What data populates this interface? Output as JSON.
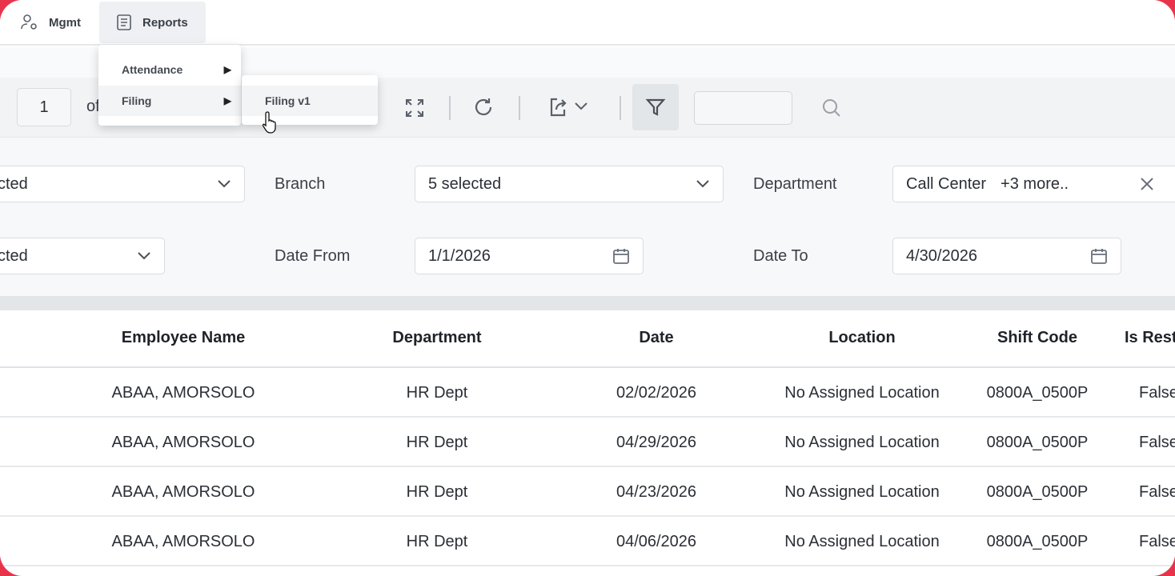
{
  "nav": {
    "items": [
      {
        "label": "Mgmt",
        "icon": "user-gear-icon"
      },
      {
        "label": "Reports",
        "icon": "document-icon",
        "active": true
      }
    ]
  },
  "menu": {
    "items": [
      {
        "label": "Attendance"
      },
      {
        "label": "Filing"
      }
    ],
    "submenu": [
      {
        "label": "Filing v1"
      }
    ]
  },
  "toolbar": {
    "page": "1",
    "of_label": "of",
    "search_value": ""
  },
  "filters": {
    "first_select": "cted",
    "branch_label": "Branch",
    "branch_value": "5 selected",
    "department_label": "Department",
    "department_value": "Call Center",
    "department_more": "+3 more..",
    "second_select": "cted",
    "date_from_label": "Date From",
    "date_from_value": "1/1/2026",
    "date_to_label": "Date To",
    "date_to_value": "4/30/2026"
  },
  "table": {
    "columns": [
      "Employee Name",
      "Department",
      "Date",
      "Location",
      "Shift Code",
      "Is Rest"
    ],
    "rows": [
      [
        "ABAA, AMORSOLO",
        "HR Dept",
        "02/02/2026",
        "No Assigned Location",
        "0800A_0500P",
        "False"
      ],
      [
        "ABAA, AMORSOLO",
        "HR Dept",
        "04/29/2026",
        "No Assigned Location",
        "0800A_0500P",
        "False"
      ],
      [
        "ABAA, AMORSOLO",
        "HR Dept",
        "04/23/2026",
        "No Assigned Location",
        "0800A_0500P",
        "False"
      ],
      [
        "ABAA, AMORSOLO",
        "HR Dept",
        "04/06/2026",
        "No Assigned Location",
        "0800A_0500P",
        "False"
      ]
    ]
  },
  "colors": {
    "accent_frame": "#e8344a",
    "toolbar_bg": "#f1f3f5"
  }
}
